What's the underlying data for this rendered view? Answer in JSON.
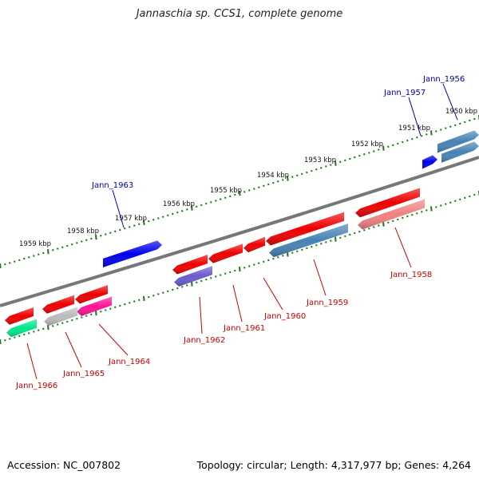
{
  "title": "Jannaschia sp. CCS1, complete genome",
  "footer": {
    "accession": "Accession: NC_007802",
    "summary": "Topology: circular; Length: 4,317,977 bp; Genes: 4,264"
  },
  "colors": {
    "backbone": "#777777",
    "tick": "#1a7a1a",
    "label_forward": "#0000aa",
    "label_reverse": "#cc0000"
  },
  "scale_labels": [
    "1959 kbp",
    "1958 kbp",
    "1957 kbp",
    "1956 kbp",
    "1955 kbp",
    "1954 kbp",
    "1953 kbp",
    "1952 kbp",
    "1951 kbp",
    "1950 kbp"
  ],
  "genes": [
    {
      "id": "Jann_1956",
      "color": "#4682b4",
      "strand": "plus"
    },
    {
      "id": "Jann_1957",
      "color": "#0000ee",
      "strand": "plus"
    },
    {
      "id": "Jann_1958",
      "color": "#f08080",
      "strand": "minus"
    },
    {
      "id": "Jann_1959",
      "color": "#4682b4",
      "strand": "minus"
    },
    {
      "id": "Jann_1960",
      "color": "#ee0000",
      "strand": "minus"
    },
    {
      "id": "Jann_1961",
      "color": "#ee0000",
      "strand": "minus"
    },
    {
      "id": "Jann_1962",
      "color": "#6a5acd",
      "strand": "minus"
    },
    {
      "id": "Jann_1963",
      "color": "#0000ee",
      "strand": "plus"
    },
    {
      "id": "Jann_1964",
      "color": "#ff1493",
      "strand": "minus"
    },
    {
      "id": "Jann_1965",
      "color": "#bbbbbb",
      "strand": "minus"
    },
    {
      "id": "Jann_1966",
      "color": "#00e68a",
      "strand": "minus"
    }
  ],
  "other_features": [
    {
      "name": "red-rna",
      "color": "#ee0000"
    }
  ]
}
